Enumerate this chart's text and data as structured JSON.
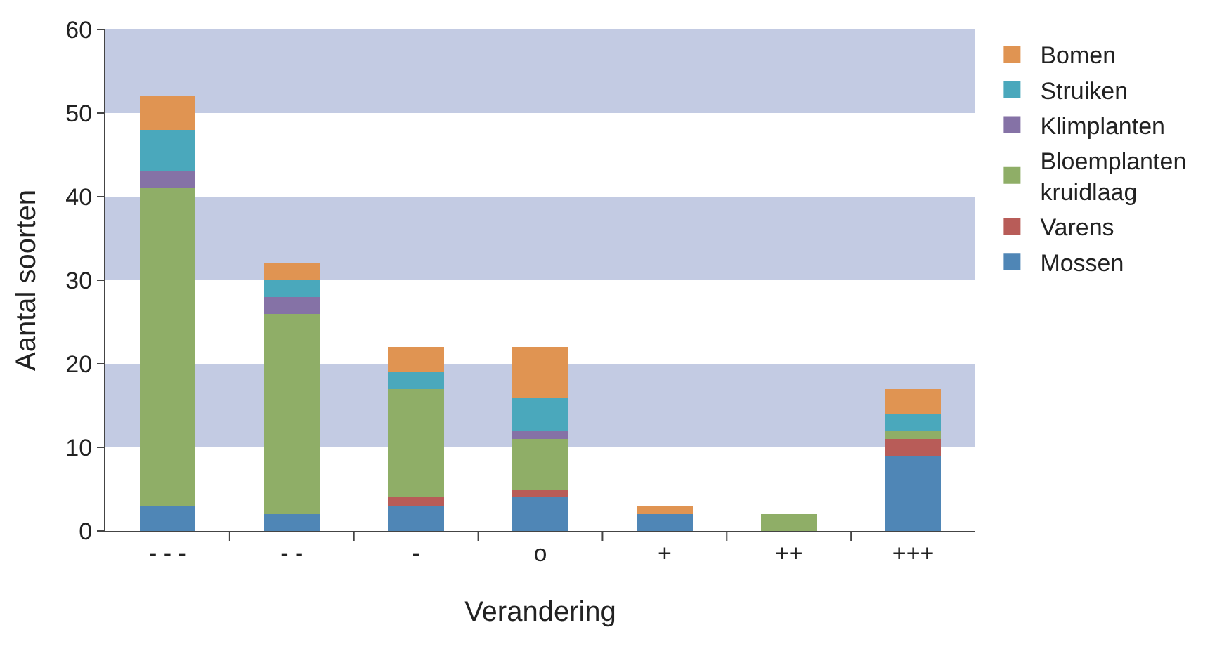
{
  "chart_data": {
    "type": "bar",
    "stacked": true,
    "xlabel": "Verandering",
    "ylabel": "Aantal soorten",
    "categories": [
      "- - -",
      "- -",
      "-",
      "o",
      "+",
      "++",
      "+++"
    ],
    "series": [
      {
        "name": "Mossen",
        "color": "#4f86b6",
        "values": [
          3,
          2,
          3,
          4,
          2,
          0,
          9
        ]
      },
      {
        "name": "Varens",
        "color": "#b85c58",
        "values": [
          0,
          0,
          1,
          1,
          0,
          0,
          2
        ]
      },
      {
        "name": "Bloemplanten\nkruidlaag",
        "color": "#8fae67",
        "values": [
          38,
          24,
          13,
          6,
          0,
          2,
          1
        ]
      },
      {
        "name": "Klimplanten",
        "color": "#8572a6",
        "values": [
          2,
          2,
          0,
          1,
          0,
          0,
          0
        ]
      },
      {
        "name": "Struiken",
        "color": "#4aa8bc",
        "values": [
          5,
          2,
          2,
          4,
          0,
          0,
          2
        ]
      },
      {
        "name": "Bomen",
        "color": "#e09452",
        "values": [
          4,
          2,
          3,
          6,
          1,
          0,
          3
        ]
      }
    ],
    "ylim": [
      0,
      60
    ],
    "yticks": [
      0,
      10,
      20,
      30,
      40,
      50,
      60
    ],
    "bands": [
      {
        "axis": "y",
        "from": 10,
        "to": 20,
        "color": "#c3cbe3"
      },
      {
        "axis": "y",
        "from": 30,
        "to": 40,
        "color": "#c3cbe3"
      },
      {
        "axis": "y",
        "from": 50,
        "to": 60,
        "color": "#c3cbe3"
      }
    ],
    "grid": false,
    "legend": "right"
  }
}
